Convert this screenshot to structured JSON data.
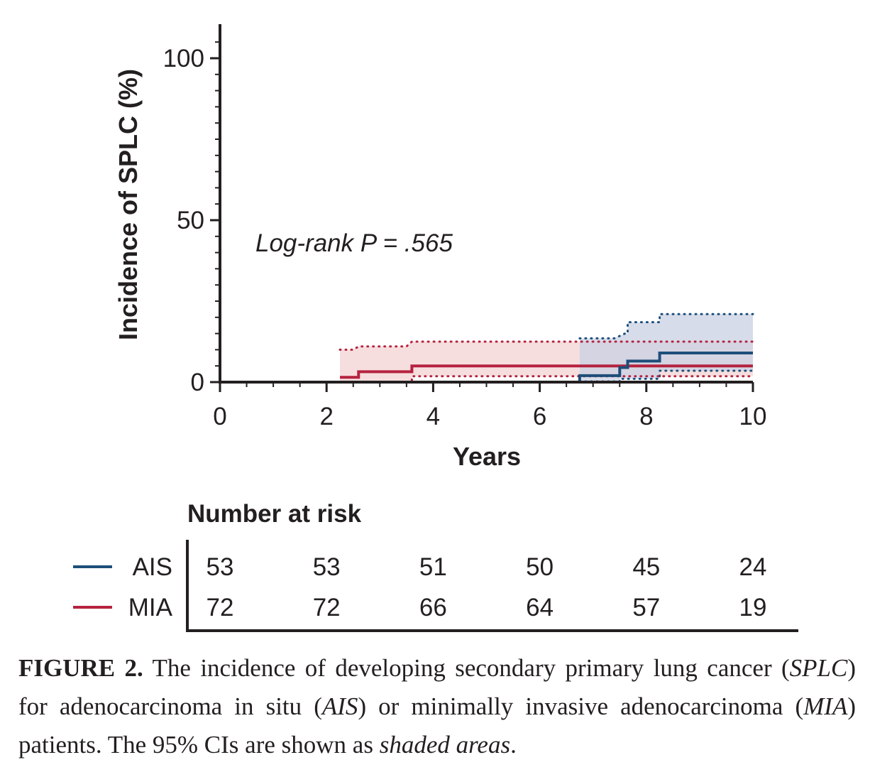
{
  "chart_data": {
    "type": "step",
    "title": "",
    "xlabel": "Years",
    "ylabel": "Incidence of SPLC (%)",
    "xlim": [
      0,
      10
    ],
    "ylim": [
      0,
      110
    ],
    "x_ticks": [
      0,
      2,
      4,
      6,
      8,
      10
    ],
    "x_tick_labels": [
      "0",
      "2",
      "4",
      "6",
      "8",
      "10"
    ],
    "y_ticks": [
      0,
      50,
      100
    ],
    "y_tick_labels": [
      "0",
      "50",
      "100"
    ],
    "annotation": "Log-rank P = .565",
    "series": [
      {
        "name": "AIS",
        "color": "#1d4e7a",
        "ci_fill": "#c9d0e3",
        "estimate": [
          [
            0,
            0
          ],
          [
            6.75,
            0
          ],
          [
            6.75,
            2
          ],
          [
            7.5,
            2
          ],
          [
            7.5,
            4.5
          ],
          [
            7.65,
            4.5
          ],
          [
            7.65,
            6.5
          ],
          [
            8.25,
            6.5
          ],
          [
            8.25,
            9
          ],
          [
            10,
            9
          ]
        ],
        "upper": [
          [
            6.75,
            13.5
          ],
          [
            7.4,
            13.5
          ],
          [
            7.6,
            15
          ],
          [
            7.65,
            15
          ],
          [
            7.65,
            18.5
          ],
          [
            8.25,
            18.5
          ],
          [
            8.25,
            21
          ],
          [
            10,
            21
          ]
        ],
        "lower": [
          [
            6.75,
            0.2
          ],
          [
            7.5,
            0.2
          ],
          [
            7.5,
            1
          ],
          [
            8.25,
            1
          ],
          [
            8.25,
            3.5
          ],
          [
            10,
            3.5
          ]
        ]
      },
      {
        "name": "MIA",
        "color": "#b5223f",
        "ci_fill": "#f3d3d3",
        "estimate": [
          [
            2.25,
            1.5
          ],
          [
            2.6,
            1.5
          ],
          [
            2.6,
            3.2
          ],
          [
            3.6,
            3.2
          ],
          [
            3.6,
            5
          ],
          [
            10,
            5
          ]
        ],
        "upper": [
          [
            2.25,
            10
          ],
          [
            2.5,
            10
          ],
          [
            2.6,
            11
          ],
          [
            3.5,
            11
          ],
          [
            3.6,
            12.5
          ],
          [
            10,
            12.5
          ]
        ],
        "lower": [
          [
            2.25,
            0
          ],
          [
            3.6,
            0
          ],
          [
            3.6,
            1.8
          ],
          [
            10,
            1.8
          ]
        ]
      }
    ]
  },
  "risk_table": {
    "title": "Number at risk",
    "rows": [
      {
        "label": "AIS",
        "color": "#1d4e7a",
        "values": [
          "53",
          "53",
          "51",
          "50",
          "45",
          "24"
        ]
      },
      {
        "label": "MIA",
        "color": "#b5223f",
        "values": [
          "72",
          "72",
          "66",
          "64",
          "57",
          "19"
        ]
      }
    ]
  },
  "caption": {
    "label": "FIGURE 2.",
    "t1": " The incidence of developing secondary primary lung cancer (",
    "i1": "SPLC",
    "t2": ") for adenocarcinoma in situ (",
    "i2": "AIS",
    "t3": ") or minimally invasive adenocarcinoma (",
    "i3": "MIA",
    "t4": ") patients. The 95% CIs are shown as ",
    "i4": "shaded areas",
    "t5": "."
  }
}
